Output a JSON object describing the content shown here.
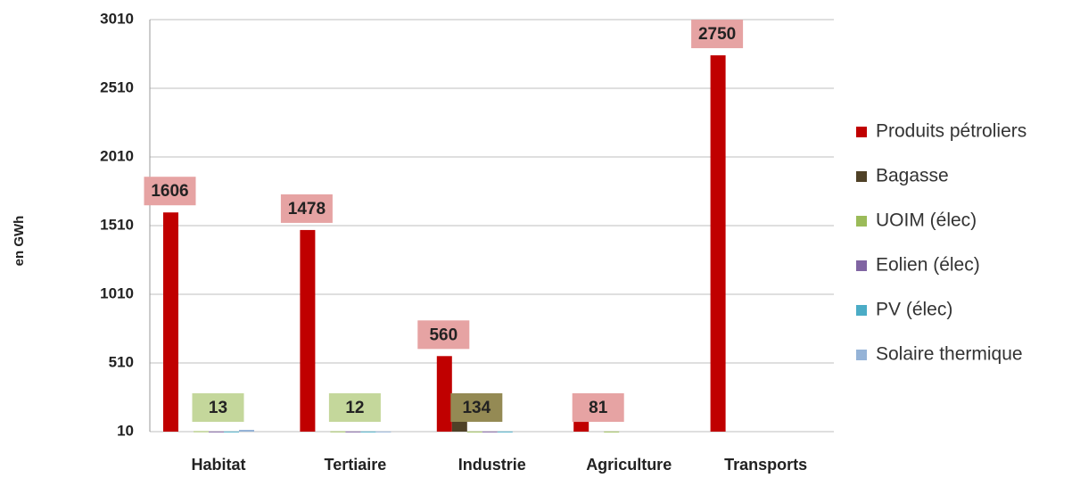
{
  "chart_data": {
    "type": "bar",
    "y_label": "en GWh",
    "categories": [
      "Habitat",
      "Tertiaire",
      "Industrie",
      "Agriculture",
      "Transports"
    ],
    "series": [
      {
        "name": "Produits pétroliers",
        "color": "#c00000",
        "label_color": "#e6a3a3",
        "values": [
          1606,
          1478,
          560,
          81,
          2750
        ],
        "value_labels": [
          "1606",
          "1478",
          "560",
          "81",
          "2750"
        ]
      },
      {
        "name": "Bagasse",
        "color": "#4f4127",
        "label_color": "#948a54",
        "values": [
          null,
          null,
          134,
          null,
          null
        ],
        "value_labels": [
          null,
          null,
          "134",
          null,
          null
        ]
      },
      {
        "name": "UOIM (élec)",
        "color": "#9bbb59",
        "label_color": "#c4d79b",
        "values": [
          13,
          12,
          11,
          11,
          null
        ],
        "value_labels": [
          "13",
          "12",
          null,
          null,
          null
        ]
      },
      {
        "name": "Eolien (élec)",
        "color": "#8064a2",
        "values": [
          11,
          11,
          11,
          null,
          null
        ]
      },
      {
        "name": "PV (élec)",
        "color": "#4bacc6",
        "values": [
          11,
          11,
          11,
          null,
          null
        ]
      },
      {
        "name": "Solaire thermique",
        "color": "#95b3d7",
        "label_color": "#b9cde5",
        "values": [
          23,
          11,
          null,
          null,
          null
        ],
        "value_labels": [
          null,
          null,
          null,
          null,
          null
        ]
      }
    ],
    "ylim": [
      10,
      3010
    ],
    "yticks": [
      10,
      510,
      1010,
      1510,
      2010,
      2510,
      3010
    ],
    "grid": true,
    "legend": "right"
  }
}
